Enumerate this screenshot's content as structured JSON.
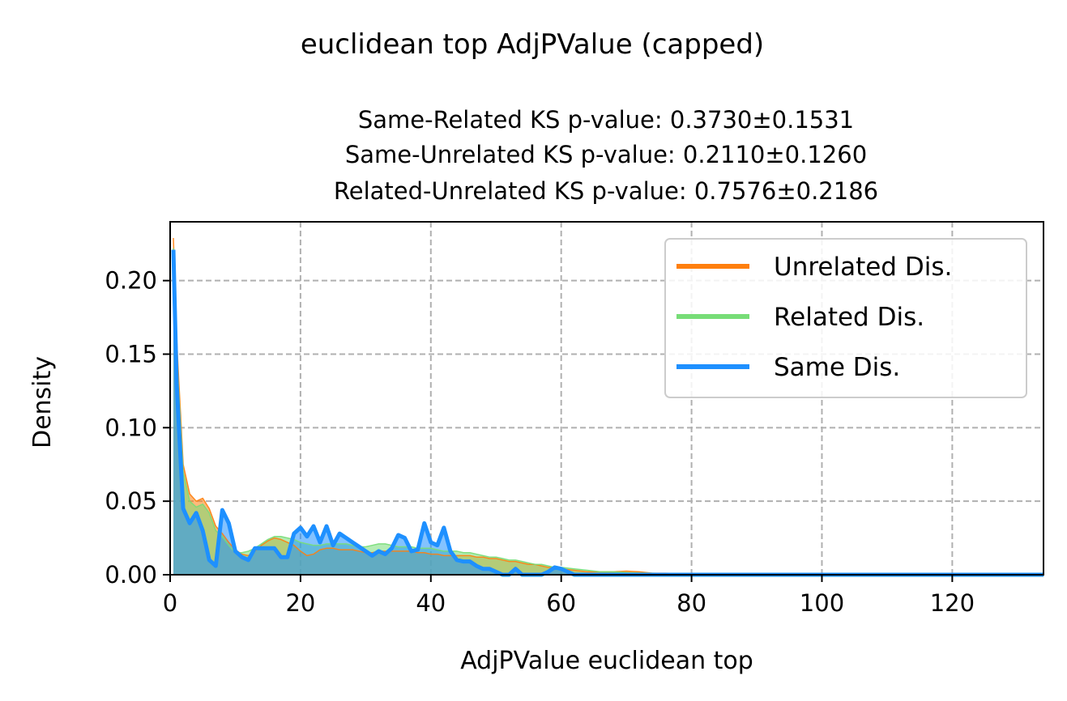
{
  "chart_data": {
    "type": "area",
    "suptitle": "euclidean top AdjPValue (capped)",
    "title_lines": [
      "Same-Related KS p-value: 0.3730±0.1531",
      "Same-Unrelated KS p-value: 0.2110±0.1260",
      "Related-Unrelated KS p-value: 0.7576±0.2186"
    ],
    "xlabel": "AdjPValue euclidean top",
    "ylabel": "Density",
    "xlim": [
      0,
      134
    ],
    "ylim": [
      0,
      0.24
    ],
    "xticks": [
      0,
      20,
      40,
      60,
      80,
      100,
      120
    ],
    "yticks": [
      0.0,
      0.05,
      0.1,
      0.15,
      0.2
    ],
    "grid": true,
    "legend_position": "top-right",
    "series": [
      {
        "name": "Unrelated Dis.",
        "color": "#ff7f0e",
        "x": [
          0.5,
          1,
          2,
          3,
          4,
          5,
          6,
          7,
          8,
          9,
          10,
          11,
          12,
          13,
          14,
          15,
          16,
          17,
          18,
          19,
          20,
          21,
          22,
          23,
          24,
          25,
          26,
          27,
          28,
          29,
          30,
          31,
          32,
          33,
          34,
          35,
          36,
          37,
          38,
          39,
          40,
          41,
          42,
          43,
          44,
          45,
          46,
          47,
          48,
          49,
          50,
          51,
          52,
          53,
          54,
          55,
          56,
          57,
          58,
          59,
          60,
          62,
          64,
          66,
          68,
          70,
          72,
          74,
          76,
          78,
          80,
          85,
          90,
          100,
          110,
          120,
          134
        ],
        "values": [
          0.229,
          0.16,
          0.075,
          0.055,
          0.05,
          0.052,
          0.045,
          0.033,
          0.028,
          0.022,
          0.017,
          0.014,
          0.013,
          0.016,
          0.02,
          0.023,
          0.025,
          0.024,
          0.022,
          0.02,
          0.016,
          0.013,
          0.014,
          0.017,
          0.018,
          0.018,
          0.017,
          0.017,
          0.017,
          0.016,
          0.015,
          0.015,
          0.016,
          0.016,
          0.016,
          0.016,
          0.016,
          0.016,
          0.015,
          0.015,
          0.014,
          0.014,
          0.013,
          0.013,
          0.013,
          0.013,
          0.013,
          0.012,
          0.012,
          0.011,
          0.011,
          0.01,
          0.009,
          0.009,
          0.008,
          0.007,
          0.007,
          0.006,
          0.005,
          0.005,
          0.004,
          0.003,
          0.002,
          0.002,
          0.002,
          0.0025,
          0.002,
          0.001,
          0.001,
          0.0008,
          0.0005,
          0.0003,
          0.0002,
          0.0001,
          0.0,
          0.0,
          0.0
        ]
      },
      {
        "name": "Related Dis.",
        "color": "#77dd77",
        "x": [
          0.5,
          1,
          2,
          3,
          4,
          5,
          6,
          7,
          8,
          9,
          10,
          11,
          12,
          13,
          14,
          15,
          16,
          17,
          18,
          19,
          20,
          21,
          22,
          23,
          24,
          25,
          26,
          27,
          28,
          29,
          30,
          31,
          32,
          33,
          34,
          35,
          36,
          37,
          38,
          39,
          40,
          41,
          42,
          43,
          44,
          45,
          46,
          47,
          48,
          49,
          50,
          51,
          52,
          53,
          54,
          55,
          56,
          57,
          58,
          59,
          60,
          62,
          64,
          66,
          68,
          70,
          72,
          74,
          76,
          78,
          80,
          85,
          90,
          100,
          110,
          120,
          134
        ],
        "values": [
          0.222,
          0.15,
          0.07,
          0.05,
          0.046,
          0.048,
          0.042,
          0.03,
          0.026,
          0.02,
          0.015,
          0.015,
          0.016,
          0.018,
          0.021,
          0.024,
          0.026,
          0.026,
          0.025,
          0.024,
          0.022,
          0.021,
          0.02,
          0.02,
          0.021,
          0.021,
          0.021,
          0.021,
          0.02,
          0.019,
          0.019,
          0.02,
          0.021,
          0.021,
          0.02,
          0.019,
          0.019,
          0.019,
          0.018,
          0.018,
          0.018,
          0.017,
          0.016,
          0.016,
          0.016,
          0.015,
          0.015,
          0.014,
          0.013,
          0.012,
          0.012,
          0.011,
          0.01,
          0.01,
          0.009,
          0.008,
          0.007,
          0.007,
          0.006,
          0.005,
          0.005,
          0.004,
          0.003,
          0.002,
          0.002,
          0.0015,
          0.0012,
          0.001,
          0.0008,
          0.0006,
          0.0004,
          0.0003,
          0.0002,
          0.0001,
          0.0,
          0.0,
          0.0
        ]
      },
      {
        "name": "Same Dis.",
        "color": "#1e90ff",
        "x": [
          0.5,
          1,
          2,
          3,
          4,
          5,
          6,
          7,
          8,
          9,
          10,
          11,
          12,
          13,
          14,
          15,
          16,
          17,
          18,
          19,
          20,
          21,
          22,
          23,
          24,
          25,
          26,
          27,
          28,
          29,
          30,
          31,
          32,
          33,
          34,
          35,
          36,
          37,
          38,
          39,
          40,
          41,
          42,
          43,
          44,
          45,
          46,
          47,
          48,
          49,
          50,
          51,
          52,
          53,
          54,
          55,
          56,
          57,
          58,
          59,
          60,
          62,
          64,
          66,
          68,
          70,
          72,
          74,
          76,
          78,
          80,
          85,
          90,
          100,
          110,
          120,
          134
        ],
        "values": [
          0.221,
          0.13,
          0.045,
          0.035,
          0.042,
          0.03,
          0.01,
          0.006,
          0.044,
          0.035,
          0.016,
          0.012,
          0.01,
          0.018,
          0.018,
          0.018,
          0.018,
          0.012,
          0.012,
          0.028,
          0.032,
          0.026,
          0.033,
          0.022,
          0.033,
          0.02,
          0.028,
          0.025,
          0.022,
          0.019,
          0.016,
          0.013,
          0.016,
          0.014,
          0.018,
          0.027,
          0.025,
          0.016,
          0.017,
          0.035,
          0.022,
          0.02,
          0.032,
          0.016,
          0.01,
          0.009,
          0.009,
          0.006,
          0.004,
          0.004,
          0.002,
          0.0,
          0.0,
          0.004,
          0.0,
          0.0,
          0.0,
          0.0,
          0.002,
          0.005,
          0.004,
          0.0,
          0.0,
          0.0,
          0.0,
          0.0,
          0.0,
          0.0,
          0.0,
          0.0,
          0.0,
          0.0,
          0.0,
          0.0,
          0.0,
          0.0,
          0.0
        ]
      }
    ]
  }
}
